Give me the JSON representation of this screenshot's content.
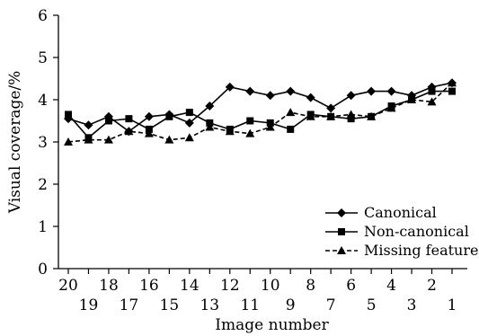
{
  "chart_data": {
    "type": "line",
    "title": "",
    "xlabel": "Image number",
    "ylabel": "Visual coverage/%",
    "categories": [
      "20",
      "19",
      "18",
      "17",
      "16",
      "15",
      "14",
      "13",
      "12",
      "11",
      "10",
      "9",
      "8",
      "7",
      "6",
      "5",
      "4",
      "3",
      "2",
      "1"
    ],
    "x_ticks_upper": [
      "20",
      "18",
      "16",
      "14",
      "12",
      "10",
      "8",
      "6",
      "4",
      "2"
    ],
    "x_ticks_lower": [
      "19",
      "17",
      "15",
      "13",
      "11",
      "9",
      "7",
      "5",
      "3",
      "1"
    ],
    "y_ticks": [
      "0",
      "1",
      "2",
      "3",
      "4",
      "5",
      "6"
    ],
    "ylim": [
      0,
      6
    ],
    "grid": false,
    "legend_position": "bottom-right",
    "series": [
      {
        "name": "Canonical",
        "marker": "diamond",
        "line_style": "solid",
        "values": [
          3.55,
          3.4,
          3.6,
          3.25,
          3.6,
          3.65,
          3.45,
          3.85,
          4.3,
          4.2,
          4.1,
          4.2,
          4.05,
          3.8,
          4.1,
          4.2,
          4.2,
          4.1,
          4.3,
          4.4
        ]
      },
      {
        "name": "Non-canonical",
        "marker": "square",
        "line_style": "solid",
        "values": [
          3.65,
          3.1,
          3.5,
          3.55,
          3.3,
          3.6,
          3.7,
          3.45,
          3.3,
          3.5,
          3.45,
          3.3,
          3.65,
          3.6,
          3.55,
          3.6,
          3.85,
          4.0,
          4.2,
          4.2
        ]
      },
      {
        "name": "Missing feature",
        "marker": "triangle",
        "line_style": "dashed",
        "values": [
          3.0,
          3.05,
          3.05,
          3.25,
          3.2,
          3.05,
          3.1,
          3.35,
          3.25,
          3.2,
          3.35,
          3.7,
          3.6,
          3.6,
          3.65,
          3.6,
          3.8,
          4.0,
          3.95,
          4.4
        ]
      }
    ]
  }
}
